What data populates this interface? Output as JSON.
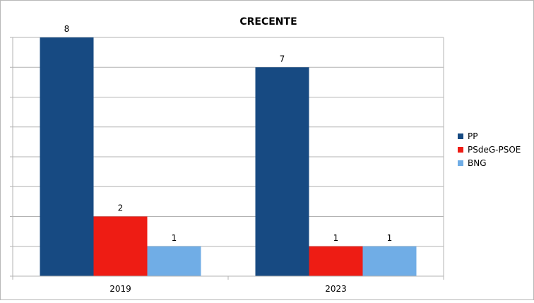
{
  "chart_data": {
    "type": "bar",
    "title": "CRECENTE",
    "categories": [
      "2019",
      "2023"
    ],
    "series": [
      {
        "name": "PP",
        "color": "#174a82",
        "values": [
          8,
          7
        ]
      },
      {
        "name": "PSdeG-PSOE",
        "color": "#ee1c14",
        "values": [
          2,
          1
        ]
      },
      {
        "name": "BNG",
        "color": "#70ade6",
        "values": [
          1,
          1
        ]
      }
    ],
    "ylim": [
      0,
      8
    ],
    "grid": true,
    "data_labels": true,
    "legend_position": "right"
  }
}
